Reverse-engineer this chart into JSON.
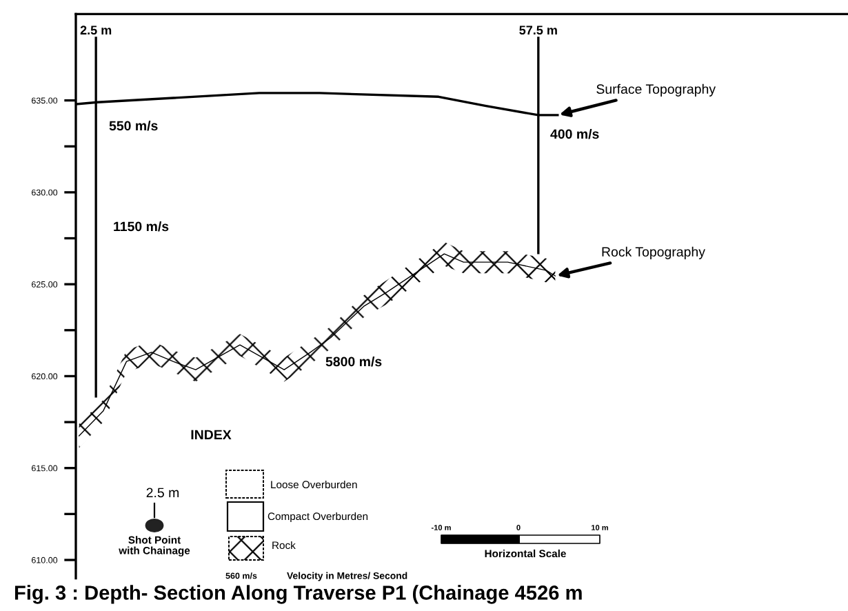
{
  "chart_data": {
    "type": "line",
    "title": "Fig. 3 : Depth- Section Along Traverse P1 (Chainage 4526 m",
    "xlim": [
      0,
      96
    ],
    "ylim": [
      609,
      639.7
    ],
    "yticks": [
      {
        "value": 610,
        "label": "610.00"
      },
      {
        "value": 612.5,
        "label": null
      },
      {
        "value": 615,
        "label": "615.00"
      },
      {
        "value": 617.5,
        "label": null
      },
      {
        "value": 620,
        "label": "620.00"
      },
      {
        "value": 622.5,
        "label": null
      },
      {
        "value": 625,
        "label": "625.00"
      },
      {
        "value": 627.5,
        "label": null
      },
      {
        "value": 630,
        "label": "630.00"
      },
      {
        "value": 632.5,
        "label": null
      },
      {
        "value": 635,
        "label": "635.00"
      }
    ],
    "xticks": [
      {
        "value": 2.5,
        "label": "2.5 m"
      },
      {
        "value": 57.5,
        "label": "57.5 m"
      }
    ],
    "grid": false,
    "series": [
      {
        "color": "#000000",
        "x": [
          0.1,
          2.7,
          22.8,
          30.3,
          45.1,
          51.0,
          57.5,
          59.9
        ],
        "values": [
          634.8,
          634.9,
          635.4,
          635.4,
          635.2,
          634.7,
          634.2,
          634.2
        ]
      },
      {
        "type": "line",
        "color": "#000000",
        "x": [
          0.4,
          3.4,
          6.3,
          9.4,
          12.1,
          14.9,
          20.4,
          25.9,
          29.0,
          31.7,
          35.8,
          38.6,
          45.8,
          48.2,
          53.7,
          58.5,
          59.6
        ],
        "values": [
          616.75,
          618.1,
          620.8,
          621.3,
          620.8,
          620.35,
          621.7,
          620.35,
          621.25,
          622.1,
          623.8,
          624.55,
          626.65,
          626.2,
          626.2,
          625.75,
          625.45
        ],
        "upper": [
          617.4,
          618.7,
          621.4,
          621.9,
          621.4,
          621.0,
          622.3,
          621.0,
          621.9,
          622.7,
          624.4,
          625.2,
          627.3,
          626.8,
          626.8,
          626.4,
          626.1
        ],
        "lower": [
          616.1,
          617.5,
          620.2,
          620.7,
          620.2,
          619.7,
          621.1,
          619.7,
          620.6,
          621.5,
          623.2,
          623.9,
          626.0,
          625.6,
          625.6,
          625.1,
          624.8
        ]
      },
      {
        "color": "#000000",
        "x": [
          2.5,
          2.5
        ],
        "values": [
          638.4,
          618.9
        ]
      },
      {
        "color": "#000000",
        "x": [
          57.5,
          57.5
        ],
        "values": [
          638.4,
          626.7
        ]
      }
    ],
    "annotations": [
      "550 m/s",
      "400 m/s",
      "1150 m/s",
      "5800 m/s",
      {
        "text": "Surface Topography",
        "x": 59.9,
        "y": 634.2
      },
      {
        "text": "Rock Topography",
        "x": 59.6,
        "y": 625.45
      },
      "INDEX",
      "Loose Overburden",
      "Compact Overburden",
      "Rock",
      "2.5 m",
      "Shot Point\nwith Chainage",
      "560 m/s",
      "Velocity in Metres/ Second",
      "-10 m",
      "0",
      "10 m",
      "Horizontal Scale"
    ]
  }
}
